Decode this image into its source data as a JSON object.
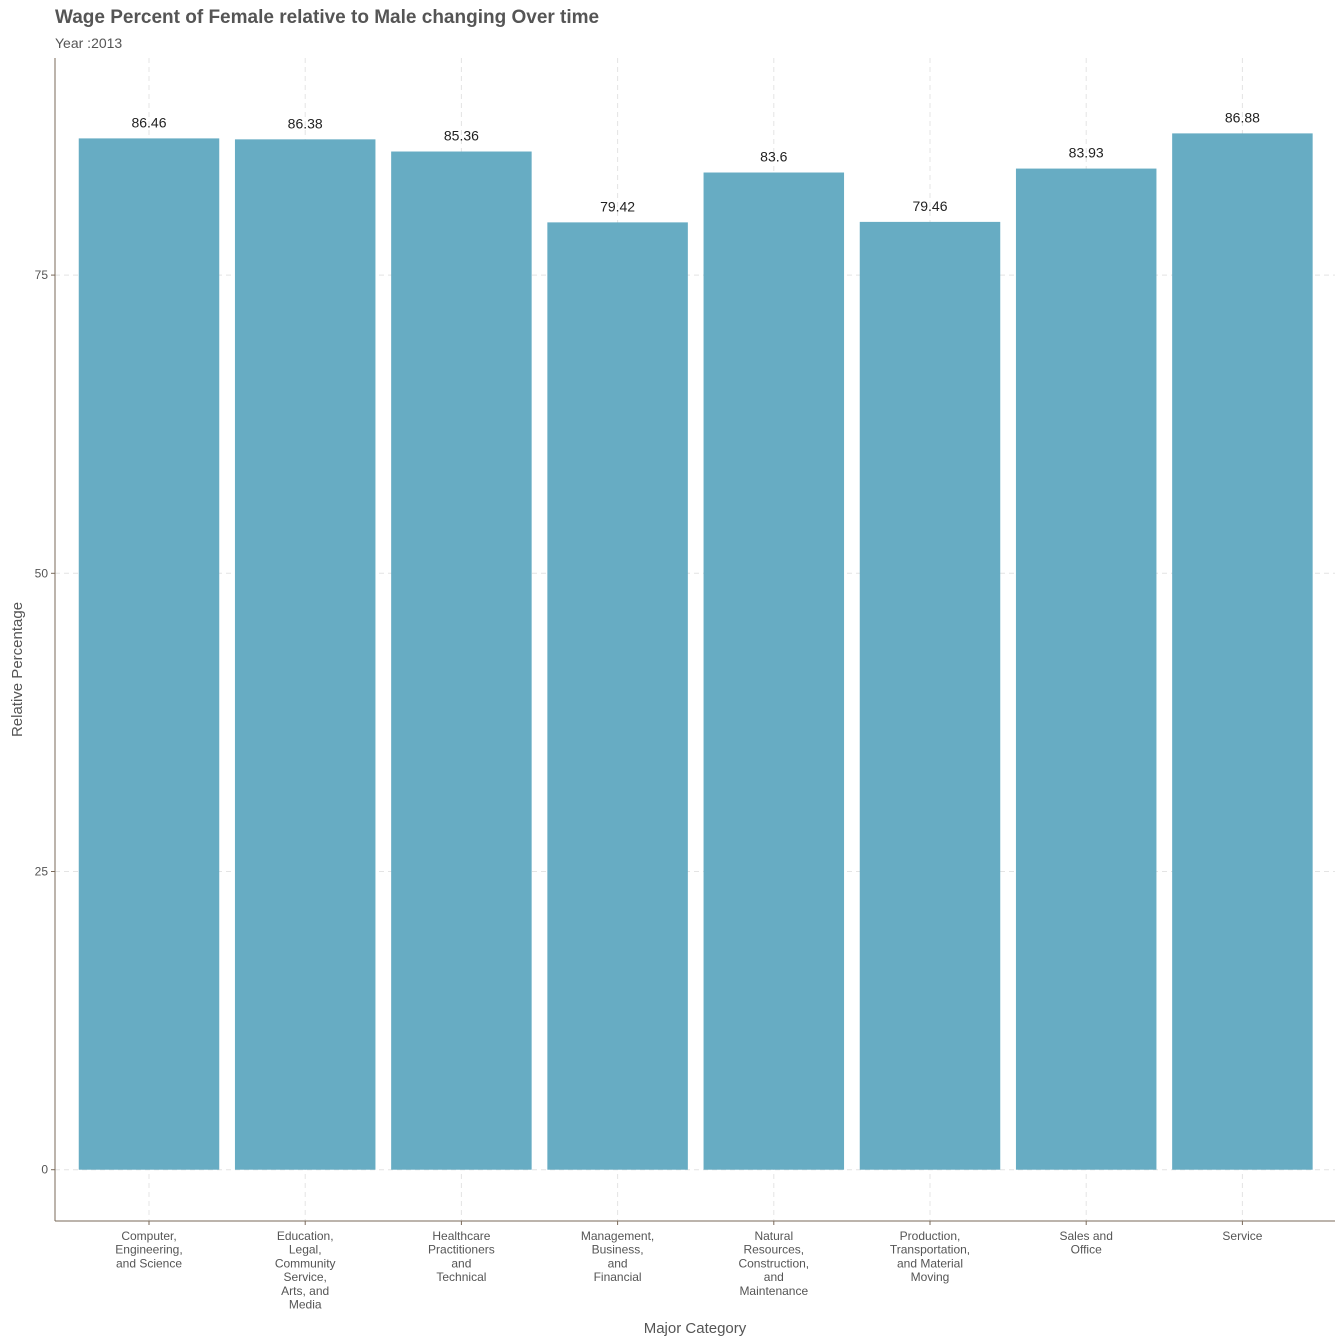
{
  "chart_data": {
    "type": "bar",
    "title": "Wage Percent of Female relative to Male changing Over time",
    "subtitle": "Year :2013",
    "xlabel": "Major Category",
    "ylabel": "Relative Percentage",
    "categories": [
      "Computer, Engineering, and Science",
      "Education, Legal, Community Service, Arts, and Media",
      "Healthcare Practitioners and Technical",
      "Management, Business, and Financial",
      "Natural Resources, Construction, and Maintenance",
      "Production, Transportation, and Material Moving",
      "Sales and Office",
      "Service"
    ],
    "category_label_lines": [
      [
        "Computer,",
        "Engineering,",
        "and Science"
      ],
      [
        "Education,",
        "Legal,",
        "Community",
        "Service,",
        "Arts, and",
        "Media"
      ],
      [
        "Healthcare",
        "Practitioners",
        "and",
        "Technical"
      ],
      [
        "Management,",
        "Business,",
        "and",
        "Financial"
      ],
      [
        "Natural",
        "Resources,",
        "Construction,",
        "and",
        "Maintenance"
      ],
      [
        "Production,",
        "Transportation,",
        "and Material",
        "Moving"
      ],
      [
        "Sales and",
        "Office"
      ],
      [
        "Service"
      ]
    ],
    "values": [
      86.46,
      86.38,
      85.36,
      79.42,
      83.6,
      79.46,
      83.93,
      86.88
    ],
    "value_labels": [
      "86.46",
      "86.38",
      "85.36",
      "79.42",
      "83.6",
      "79.46",
      "83.93",
      "86.88"
    ],
    "ylim": [
      -4.3,
      93.2
    ],
    "yticks": [
      0,
      25,
      50,
      75
    ],
    "ytick_labels": [
      "0",
      "25",
      "50",
      "75"
    ],
    "grid": true,
    "legend": "none",
    "bar_color": "#67acc3"
  }
}
